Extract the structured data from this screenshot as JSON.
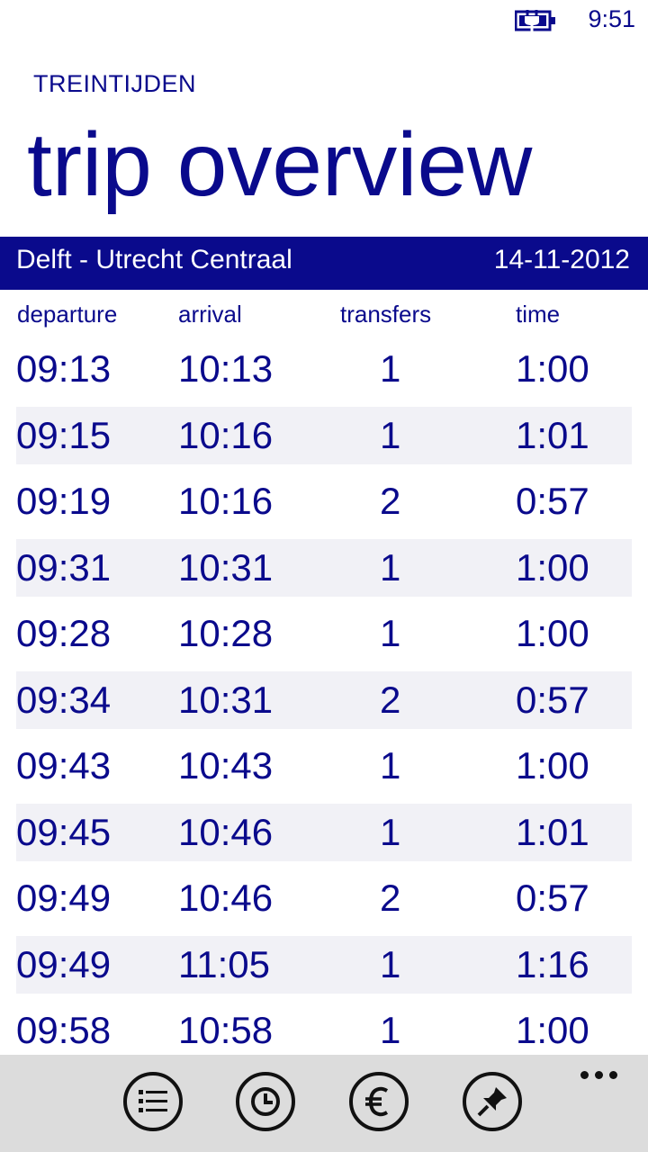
{
  "status_bar": {
    "battery_icon": "battery-charging-icon",
    "time": "9:51"
  },
  "header": {
    "app_title": "TREINTIJDEN",
    "page_title": "trip overview"
  },
  "route": {
    "name": "Delft - Utrecht Centraal",
    "date": "14-11-2012"
  },
  "columns": {
    "departure": "departure",
    "arrival": "arrival",
    "transfers": "transfers",
    "time": "time"
  },
  "trips": [
    {
      "departure": "09:13",
      "arrival": "10:13",
      "transfers": "1",
      "time": "1:00"
    },
    {
      "departure": "09:15",
      "arrival": "10:16",
      "transfers": "1",
      "time": "1:01"
    },
    {
      "departure": "09:19",
      "arrival": "10:16",
      "transfers": "2",
      "time": "0:57"
    },
    {
      "departure": "09:31",
      "arrival": "10:31",
      "transfers": "1",
      "time": "1:00"
    },
    {
      "departure": "09:28",
      "arrival": "10:28",
      "transfers": "1",
      "time": "1:00"
    },
    {
      "departure": "09:34",
      "arrival": "10:31",
      "transfers": "2",
      "time": "0:57"
    },
    {
      "departure": "09:43",
      "arrival": "10:43",
      "transfers": "1",
      "time": "1:00"
    },
    {
      "departure": "09:45",
      "arrival": "10:46",
      "transfers": "1",
      "time": "1:01"
    },
    {
      "departure": "09:49",
      "arrival": "10:46",
      "transfers": "2",
      "time": "0:57"
    },
    {
      "departure": "09:49",
      "arrival": "11:05",
      "transfers": "1",
      "time": "1:16"
    },
    {
      "departure": "09:58",
      "arrival": "10:58",
      "transfers": "1",
      "time": "1:00"
    }
  ],
  "app_bar": {
    "buttons": [
      "list-icon",
      "clock-icon",
      "euro-icon",
      "pin-icon"
    ],
    "more_icon": "more-dots-icon"
  },
  "colors": {
    "accent": "#0a0a8c",
    "row_alt": "#f1f1f6",
    "app_bar": "#dcdcdc"
  }
}
